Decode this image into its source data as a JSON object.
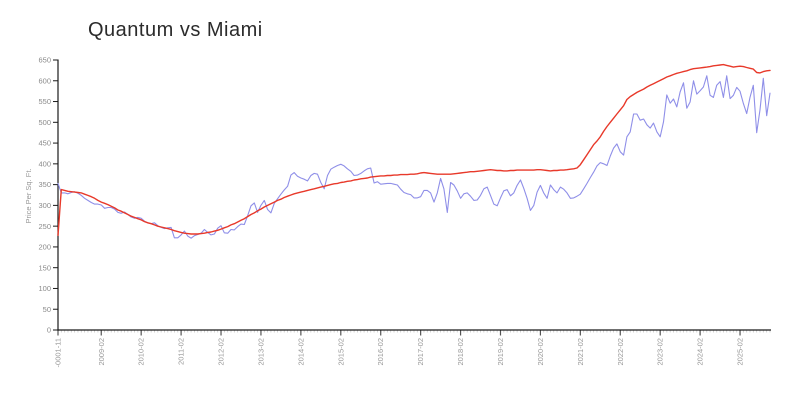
{
  "title": "Quantum vs Miami",
  "chart_data": {
    "type": "line",
    "title": "Quantum vs Miami",
    "xlabel": "",
    "ylabel": "Price Per Sq. Ft.",
    "ylim": [
      0,
      650
    ],
    "grid": false,
    "legend_position": "none",
    "y_ticks": [
      0,
      50,
      100,
      150,
      200,
      250,
      300,
      350,
      400,
      450,
      500,
      550,
      600,
      650
    ],
    "x_ticks": [
      {
        "label": "-0001-11",
        "month": 0
      },
      {
        "label": "2009-02",
        "month": 13
      },
      {
        "label": "2010-02",
        "month": 25
      },
      {
        "label": "2011-02",
        "month": 37
      },
      {
        "label": "2012-02",
        "month": 49
      },
      {
        "label": "2013-02",
        "month": 61
      },
      {
        "label": "2014-02",
        "month": 73
      },
      {
        "label": "2015-02",
        "month": 85
      },
      {
        "label": "2016-02",
        "month": 97
      },
      {
        "label": "2017-02",
        "month": 109
      },
      {
        "label": "2018-02",
        "month": 121
      },
      {
        "label": "2019-02",
        "month": 133
      },
      {
        "label": "2020-02",
        "month": 145
      },
      {
        "label": "2021-02",
        "month": 157
      },
      {
        "label": "2022-02",
        "month": 169
      },
      {
        "label": "2023-02",
        "month": 181
      },
      {
        "label": "2024-02",
        "month": 193
      },
      {
        "label": "2025-02",
        "month": 205
      }
    ],
    "x_unit": "month",
    "series": [
      {
        "name": "Quantum",
        "color": "#8f8fe8",
        "stroke_width": 1.1,
        "values": [
          353,
          330,
          330,
          328,
          331,
          333,
          329,
          324,
          317,
          312,
          307,
          303,
          303,
          301,
          293,
          295,
          295,
          291,
          283,
          281,
          284,
          278,
          272,
          269,
          271,
          269,
          262,
          258,
          256,
          258,
          251,
          247,
          244,
          246,
          247,
          222,
          222,
          229,
          238,
          226,
          221,
          227,
          230,
          233,
          242,
          235,
          229,
          231,
          245,
          251,
          234,
          233,
          242,
          241,
          249,
          255,
          254,
          275,
          299,
          306,
          283,
          300,
          312,
          290,
          282,
          305,
          316,
          327,
          337,
          346,
          373,
          379,
          370,
          366,
          363,
          359,
          372,
          377,
          375,
          355,
          340,
          372,
          387,
          392,
          396,
          399,
          395,
          388,
          382,
          372,
          373,
          377,
          383,
          388,
          390,
          354,
          357,
          351,
          352,
          353,
          353,
          351,
          349,
          339,
          331,
          328,
          326,
          318,
          318,
          321,
          336,
          336,
          330,
          308,
          330,
          365,
          340,
          283,
          355,
          349,
          335,
          317,
          328,
          330,
          322,
          312,
          313,
          324,
          340,
          344,
          324,
          303,
          299,
          318,
          335,
          338,
          323,
          330,
          348,
          361,
          341,
          317,
          288,
          300,
          332,
          348,
          330,
          317,
          349,
          338,
          330,
          344,
          339,
          330,
          317,
          318,
          322,
          327,
          340,
          353,
          367,
          380,
          395,
          403,
          400,
          396,
          419,
          438,
          448,
          429,
          421,
          465,
          477,
          520,
          520,
          505,
          508,
          494,
          486,
          498,
          477,
          465,
          501,
          566,
          546,
          556,
          537,
          573,
          595,
          534,
          549,
          600,
          568,
          576,
          585,
          612,
          565,
          560,
          589,
          598,
          560,
          612,
          557,
          565,
          584,
          575,
          545,
          521,
          560,
          589,
          475,
          530,
          606,
          516,
          570
        ]
      },
      {
        "name": "Miami",
        "color": "#e8392a",
        "stroke_width": 1.4,
        "values": [
          228,
          338,
          336,
          334,
          333,
          332,
          331,
          330,
          327,
          324,
          321,
          317,
          312,
          308,
          305,
          302,
          298,
          294,
          289,
          286,
          282,
          278,
          274,
          271,
          268,
          265,
          261,
          258,
          256,
          253,
          250,
          248,
          246,
          244,
          242,
          239,
          237,
          235,
          233,
          232,
          231,
          231,
          231,
          232,
          233,
          235,
          236,
          238,
          240,
          243,
          246,
          249,
          253,
          256,
          260,
          264,
          268,
          273,
          278,
          282,
          287,
          291,
          296,
          300,
          304,
          308,
          312,
          315,
          319,
          322,
          325,
          328,
          330,
          332,
          334,
          336,
          338,
          340,
          342,
          344,
          346,
          348,
          350,
          352,
          353,
          355,
          356,
          358,
          359,
          361,
          362,
          364,
          365,
          366,
          368,
          369,
          370,
          371,
          371,
          372,
          372,
          373,
          373,
          374,
          374,
          374,
          375,
          375,
          376,
          378,
          379,
          378,
          377,
          376,
          375,
          375,
          375,
          375,
          375,
          376,
          377,
          378,
          379,
          380,
          381,
          381,
          382,
          383,
          384,
          385,
          386,
          385,
          384,
          384,
          383,
          383,
          384,
          384,
          385,
          385,
          385,
          385,
          385,
          385,
          386,
          386,
          385,
          384,
          383,
          384,
          384,
          385,
          385,
          386,
          387,
          388,
          390,
          398,
          410,
          422,
          434,
          446,
          455,
          465,
          478,
          490,
          500,
          510,
          520,
          530,
          540,
          555,
          562,
          567,
          572,
          576,
          580,
          585,
          589,
          593,
          597,
          601,
          605,
          609,
          612,
          615,
          618,
          620,
          622,
          624,
          627,
          629,
          630,
          631,
          632,
          633,
          634,
          636,
          637,
          638,
          639,
          637,
          635,
          633,
          634,
          635,
          634,
          632,
          630,
          628,
          620,
          619,
          622,
          624,
          625
        ]
      }
    ],
    "axis_color": "#1a1a1a",
    "major_tick_color": "#555555",
    "minor_tick_color": "#c9c9c9",
    "x_tick_label_color": "#999999",
    "y_tick_label_color": "#8a8a8a",
    "title_color": "#2b2b2b",
    "ylabel_color": "#999999"
  }
}
